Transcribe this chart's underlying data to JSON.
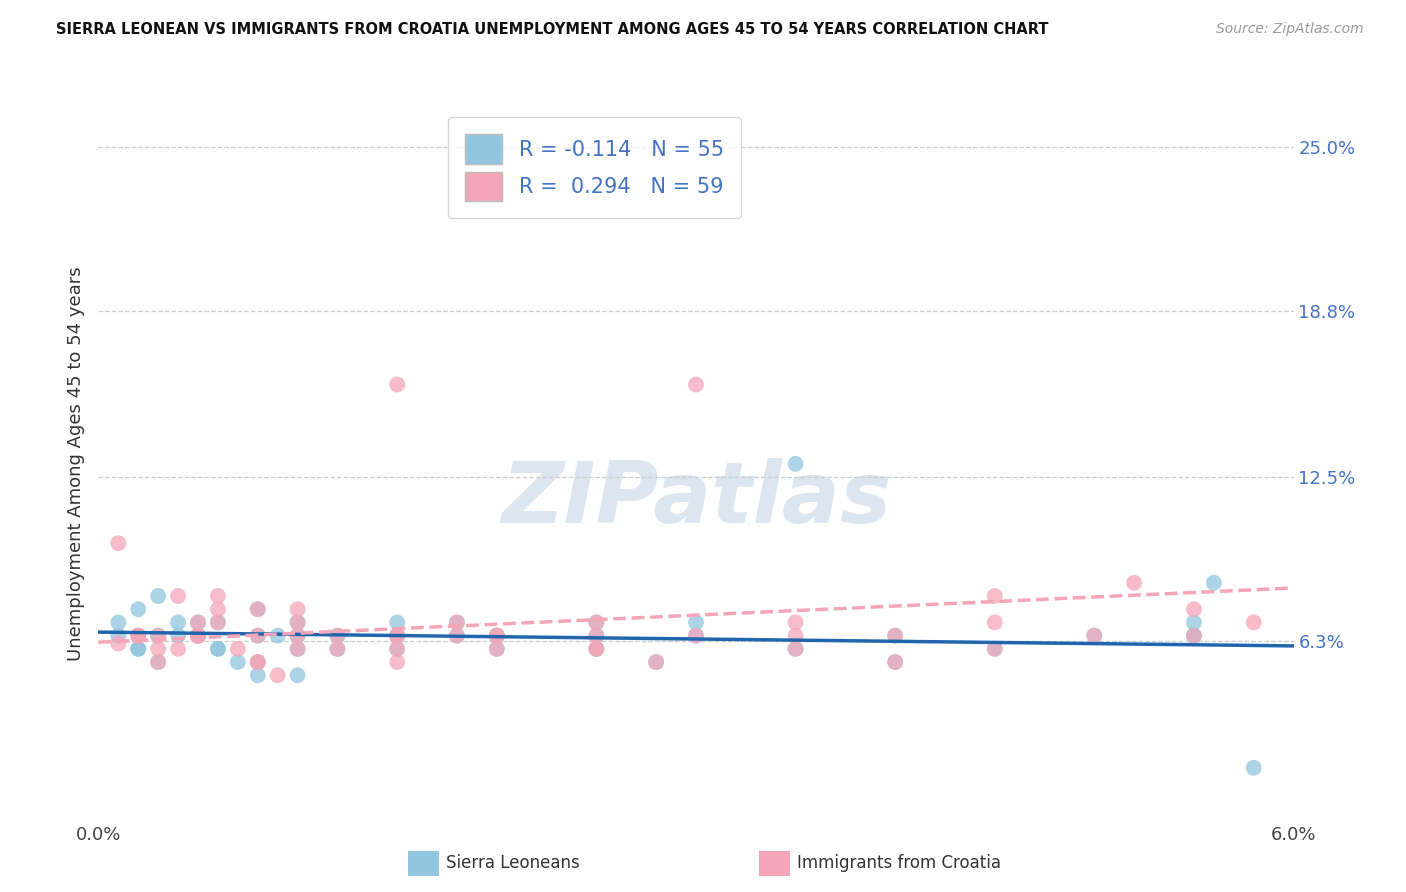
{
  "title": "SIERRA LEONEAN VS IMMIGRANTS FROM CROATIA UNEMPLOYMENT AMONG AGES 45 TO 54 YEARS CORRELATION CHART",
  "source": "Source: ZipAtlas.com",
  "xlim": [
    0.0,
    0.06
  ],
  "ylim": [
    -0.005,
    0.265
  ],
  "ytick_vals": [
    0.063,
    0.125,
    0.188,
    0.25
  ],
  "ytick_labels": [
    "6.3%",
    "12.5%",
    "18.8%",
    "25.0%"
  ],
  "xtick_vals": [
    0.0,
    0.06
  ],
  "xtick_labels": [
    "0.0%",
    "6.0%"
  ],
  "series1_color": "#92c5de",
  "series2_color": "#f4a6b8",
  "line1_color": "#2166ac",
  "line2_color": "#f4a6b8",
  "series1_label": "Sierra Leoneans",
  "series2_label": "Immigrants from Croatia",
  "legend_r1": "R = -0.114   N = 55",
  "legend_r2": "R =  0.294   N = 59",
  "watermark": "ZIPatlas",
  "watermark_color": "#dce6f0",
  "ylabel": "Unemployment Among Ages 45 to 54 years",
  "seed": 42,
  "n_blue": 55,
  "n_pink": 59,
  "r_blue": -0.114,
  "r_pink": 0.294,
  "blue_scatter_x": [
    0.001,
    0.002,
    0.003,
    0.004,
    0.005,
    0.006,
    0.007,
    0.008,
    0.009,
    0.01,
    0.001,
    0.002,
    0.003,
    0.005,
    0.006,
    0.008,
    0.01,
    0.012,
    0.015,
    0.018,
    0.002,
    0.004,
    0.006,
    0.008,
    0.012,
    0.015,
    0.018,
    0.02,
    0.025,
    0.028,
    0.003,
    0.005,
    0.008,
    0.01,
    0.015,
    0.02,
    0.025,
    0.03,
    0.035,
    0.04,
    0.005,
    0.01,
    0.015,
    0.02,
    0.025,
    0.03,
    0.035,
    0.04,
    0.045,
    0.05,
    0.055,
    0.055,
    0.055,
    0.056,
    0.058
  ],
  "blue_scatter_y": [
    0.065,
    0.06,
    0.055,
    0.07,
    0.065,
    0.06,
    0.055,
    0.05,
    0.065,
    0.06,
    0.07,
    0.075,
    0.08,
    0.065,
    0.06,
    0.055,
    0.05,
    0.065,
    0.07,
    0.065,
    0.06,
    0.065,
    0.07,
    0.065,
    0.06,
    0.065,
    0.07,
    0.065,
    0.06,
    0.055,
    0.065,
    0.07,
    0.075,
    0.065,
    0.06,
    0.065,
    0.07,
    0.065,
    0.06,
    0.055,
    0.065,
    0.07,
    0.065,
    0.06,
    0.065,
    0.07,
    0.13,
    0.065,
    0.06,
    0.065,
    0.07,
    0.065,
    0.065,
    0.085,
    0.015
  ],
  "pink_scatter_x": [
    0.001,
    0.002,
    0.003,
    0.004,
    0.005,
    0.006,
    0.007,
    0.008,
    0.009,
    0.01,
    0.001,
    0.002,
    0.003,
    0.005,
    0.006,
    0.008,
    0.01,
    0.012,
    0.015,
    0.018,
    0.002,
    0.004,
    0.006,
    0.008,
    0.012,
    0.015,
    0.018,
    0.02,
    0.025,
    0.028,
    0.003,
    0.005,
    0.008,
    0.01,
    0.015,
    0.02,
    0.025,
    0.03,
    0.035,
    0.04,
    0.005,
    0.01,
    0.015,
    0.02,
    0.025,
    0.03,
    0.035,
    0.04,
    0.045,
    0.05,
    0.015,
    0.025,
    0.035,
    0.045,
    0.055,
    0.045,
    0.052,
    0.055,
    0.058
  ],
  "pink_scatter_y": [
    0.062,
    0.065,
    0.055,
    0.08,
    0.065,
    0.07,
    0.06,
    0.055,
    0.05,
    0.075,
    0.1,
    0.065,
    0.06,
    0.065,
    0.08,
    0.055,
    0.06,
    0.065,
    0.16,
    0.065,
    0.065,
    0.06,
    0.075,
    0.065,
    0.06,
    0.065,
    0.07,
    0.065,
    0.06,
    0.055,
    0.065,
    0.07,
    0.075,
    0.065,
    0.06,
    0.065,
    0.07,
    0.065,
    0.06,
    0.055,
    0.065,
    0.07,
    0.065,
    0.06,
    0.065,
    0.16,
    0.07,
    0.065,
    0.06,
    0.065,
    0.055,
    0.06,
    0.065,
    0.07,
    0.075,
    0.08,
    0.085,
    0.065,
    0.07
  ]
}
